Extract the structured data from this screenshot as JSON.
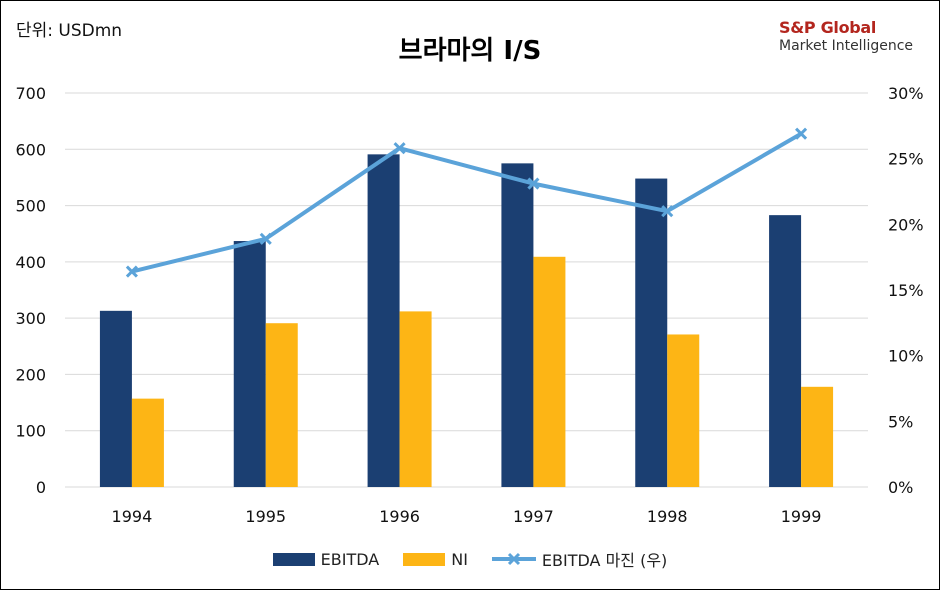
{
  "unit_label": "단위: USDmn",
  "logo": {
    "line1": "S&P Global",
    "line2": "Market Intelligence"
  },
  "colors": {
    "ebitda": "#1b3f72",
    "ni": "#fdb515",
    "margin": "#5ba3d9",
    "grid": "#d9d9d9"
  },
  "chart_data": {
    "type": "bar",
    "title": "브라마의 I/S",
    "categories": [
      "1994",
      "1995",
      "1996",
      "1997",
      "1998",
      "1999"
    ],
    "series": [
      {
        "name": "EBITDA",
        "type": "bar",
        "axis": "left",
        "values": [
          313,
          437,
          591,
          575,
          548,
          483
        ]
      },
      {
        "name": "NI",
        "type": "bar",
        "axis": "left",
        "values": [
          157,
          291,
          312,
          409,
          271,
          178
        ]
      },
      {
        "name": "EBITDA 마진 (우)",
        "type": "line",
        "axis": "right",
        "values": [
          16.4,
          18.9,
          25.8,
          23.1,
          21.0,
          26.9
        ]
      }
    ],
    "y_left": {
      "min": 0,
      "max": 700,
      "ticks": [
        "0",
        "100",
        "200",
        "300",
        "400",
        "500",
        "600",
        "700"
      ]
    },
    "y_right": {
      "min": 0,
      "max": 30,
      "ticks": [
        "0%",
        "5%",
        "10%",
        "15%",
        "20%",
        "25%",
        "30%"
      ]
    },
    "grid": true,
    "legend_position": "bottom"
  }
}
